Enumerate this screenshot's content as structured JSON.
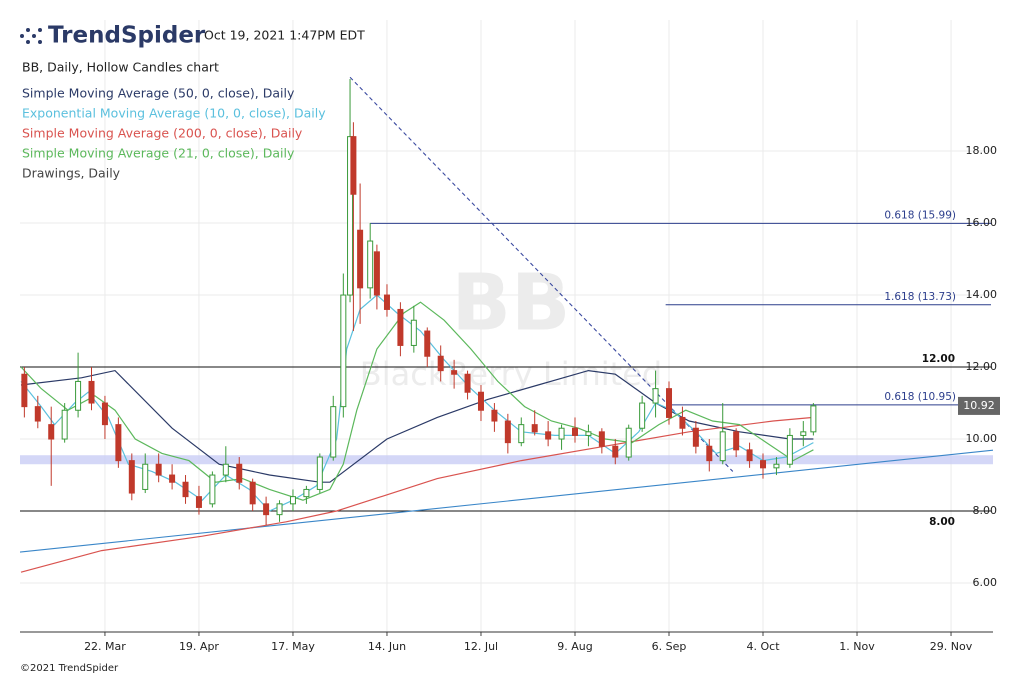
{
  "header": {
    "brand": "TrendSpider",
    "timestamp": "Oct 19, 2021 1:47PM EDT",
    "chart_title": "BB, Daily, Hollow Candles chart",
    "drawings_label": "Drawings, Daily",
    "copyright": "©2021 TrendSpider"
  },
  "chart_data": {
    "type": "candlestick",
    "watermark_symbol": "BB",
    "watermark_name": "BlackBerry Limited",
    "x": [
      57,
      61,
      65,
      69,
      73,
      77,
      81,
      85,
      89,
      93,
      97,
      101,
      105,
      109,
      113,
      117,
      121,
      125,
      129,
      133,
      137,
      141,
      145,
      149,
      152,
      154,
      155,
      157,
      160,
      162,
      165,
      169,
      173,
      177,
      181,
      185,
      189,
      193,
      197,
      201,
      205,
      209,
      213,
      217,
      221,
      225,
      229,
      233,
      237,
      241,
      245,
      249,
      253,
      257,
      261,
      265,
      269,
      273,
      277,
      281,
      285,
      289,
      292
    ],
    "open": [
      11.8,
      10.9,
      10.4,
      10.0,
      10.8,
      11.6,
      11.0,
      10.4,
      9.4,
      8.6,
      9.3,
      9.0,
      8.8,
      8.4,
      8.2,
      9.0,
      9.3,
      8.8,
      8.2,
      7.9,
      8.2,
      8.4,
      8.6,
      9.5,
      10.9,
      14.0,
      18.4,
      15.8,
      14.2,
      15.2,
      14.0,
      13.6,
      12.6,
      13.0,
      12.3,
      11.9,
      11.8,
      11.3,
      10.8,
      10.5,
      9.9,
      10.4,
      10.2,
      10.0,
      10.3,
      10.1,
      10.2,
      9.8,
      9.5,
      10.3,
      11.0,
      11.4,
      10.6,
      10.3,
      9.8,
      9.4,
      10.2,
      9.7,
      9.4,
      9.2,
      9.3,
      10.1,
      10.2
    ],
    "high": [
      12.0,
      11.2,
      10.9,
      11.0,
      12.4,
      12.0,
      11.2,
      10.6,
      9.6,
      9.6,
      9.6,
      9.3,
      9.0,
      8.7,
      9.1,
      9.8,
      9.5,
      8.9,
      8.4,
      8.3,
      8.6,
      8.7,
      9.6,
      11.2,
      14.6,
      20.0,
      18.8,
      17.1,
      16.0,
      15.4,
      14.3,
      13.8,
      13.7,
      13.1,
      12.6,
      12.2,
      11.9,
      11.5,
      11.0,
      10.7,
      10.6,
      10.8,
      10.5,
      10.4,
      10.6,
      10.4,
      10.3,
      10.0,
      10.4,
      11.2,
      11.9,
      11.6,
      10.9,
      10.5,
      10.0,
      11.0,
      10.3,
      9.9,
      9.6,
      9.5,
      10.3,
      10.5,
      11.0
    ],
    "low": [
      10.6,
      10.3,
      8.7,
      9.9,
      10.6,
      10.8,
      10.0,
      9.2,
      8.3,
      8.5,
      8.8,
      8.6,
      8.2,
      7.9,
      8.1,
      8.8,
      8.6,
      8.0,
      7.6,
      7.7,
      8.0,
      8.2,
      8.5,
      9.4,
      10.6,
      13.8,
      13.0,
      13.2,
      13.9,
      13.6,
      13.4,
      12.3,
      12.4,
      12.0,
      11.6,
      11.4,
      11.1,
      10.5,
      10.2,
      9.6,
      9.8,
      10.1,
      9.8,
      9.7,
      9.9,
      9.8,
      9.6,
      9.3,
      9.4,
      10.2,
      10.6,
      10.4,
      10.1,
      9.6,
      9.1,
      9.3,
      9.5,
      9.2,
      8.9,
      9.0,
      9.2,
      9.8,
      10.1
    ],
    "close": [
      10.9,
      10.5,
      10.0,
      10.8,
      11.6,
      11.0,
      10.4,
      9.4,
      8.5,
      9.3,
      9.0,
      8.8,
      8.4,
      8.1,
      9.0,
      9.3,
      8.8,
      8.2,
      7.9,
      8.2,
      8.4,
      8.6,
      9.5,
      10.9,
      14.0,
      18.4,
      16.8,
      14.2,
      15.5,
      14.0,
      13.6,
      12.6,
      13.3,
      12.3,
      11.9,
      11.8,
      11.3,
      10.8,
      10.5,
      9.9,
      10.4,
      10.2,
      10.0,
      10.3,
      10.1,
      10.2,
      9.8,
      9.5,
      10.3,
      11.0,
      11.4,
      10.6,
      10.3,
      9.8,
      9.4,
      10.2,
      9.7,
      9.4,
      9.2,
      9.3,
      10.1,
      10.2,
      10.92
    ],
    "up_color": "#3a9a3a",
    "down_color": "#c0392b",
    "indicators": [
      {
        "name": "Simple Moving Average (50, 0, close), Daily",
        "color": "#2b3a67",
        "x": [
          56,
          74,
          84,
          101,
          115,
          130,
          145,
          148,
          165,
          180,
          195,
          210,
          225,
          233,
          245,
          255,
          270,
          285,
          292
        ],
        "values": [
          11.5,
          11.7,
          11.9,
          10.3,
          9.3,
          9.0,
          8.8,
          8.8,
          10.0,
          10.6,
          11.1,
          11.5,
          11.9,
          11.8,
          11.0,
          10.5,
          10.2,
          10.0,
          10.0
        ]
      },
      {
        "name": "Exponential Moving Average (10, 0, close), Daily",
        "color": "#5bc0de",
        "x": [
          56,
          62,
          66,
          72,
          76,
          82,
          88,
          95,
          102,
          110,
          117,
          124,
          130,
          137,
          144,
          150,
          153,
          157,
          162,
          168,
          175,
          182,
          190,
          197,
          205,
          215,
          225,
          233,
          240,
          245,
          250,
          257,
          263,
          270,
          277,
          284,
          292
        ],
        "values": [
          11.6,
          10.9,
          10.4,
          11.0,
          11.3,
          10.6,
          9.3,
          9.1,
          8.8,
          8.3,
          9.0,
          8.6,
          8.0,
          8.3,
          8.7,
          10.0,
          12.5,
          13.6,
          14.0,
          13.5,
          13.0,
          12.2,
          11.4,
          10.8,
          10.2,
          10.1,
          10.1,
          9.6,
          10.2,
          11.0,
          10.8,
          10.2,
          9.6,
          9.8,
          9.4,
          9.5,
          9.9
        ]
      },
      {
        "name": "Simple Moving Average (200, 0, close), Daily",
        "color": "#d9534f",
        "x": [
          56,
          80,
          110,
          135,
          150,
          180,
          205,
          230,
          255,
          280,
          292
        ],
        "values": [
          6.3,
          6.9,
          7.3,
          7.7,
          8.0,
          8.9,
          9.4,
          9.8,
          10.2,
          10.5,
          10.6
        ]
      },
      {
        "name": "Simple Moving Average (21, 0, close), Daily",
        "color": "#5cb85c",
        "x": [
          56,
          62,
          70,
          78,
          84,
          90,
          98,
          106,
          114,
          122,
          130,
          140,
          148,
          152,
          156,
          162,
          170,
          175,
          182,
          190,
          198,
          206,
          214,
          222,
          230,
          238,
          246,
          254,
          262,
          270,
          278,
          286,
          292
        ],
        "values": [
          12.0,
          11.4,
          10.8,
          11.2,
          10.8,
          10.0,
          9.6,
          9.4,
          8.8,
          8.9,
          8.6,
          8.3,
          8.6,
          9.3,
          10.8,
          12.5,
          13.5,
          13.8,
          13.3,
          12.5,
          11.6,
          10.9,
          10.5,
          10.3,
          10.0,
          9.9,
          10.4,
          10.8,
          10.5,
          10.4,
          9.9,
          9.4,
          9.7
        ]
      }
    ],
    "levels": [
      {
        "value": 15.99,
        "label": "0.618 (15.99)",
        "color": "#2c3e8c",
        "x0": 160
      },
      {
        "value": 13.73,
        "label": "1.618 (13.73)",
        "color": "#2c3e8c",
        "x0": 248
      },
      {
        "value": 12.0,
        "label": "12.00",
        "color": "#111111",
        "x0": 55.7
      },
      {
        "value": 10.95,
        "label": "0.618 (10.95)",
        "color": "#2c3e8c",
        "x0": 249
      },
      {
        "value": 8.0,
        "label": "8.00",
        "color": "#111111",
        "x0": 55.7
      }
    ],
    "trendlines": [
      {
        "x": [
          154,
          268
        ],
        "y": [
          20.05,
          9.1
        ],
        "color": "#3b4aa0",
        "dashed": true
      },
      {
        "x": [
          55.7,
          345.5
        ],
        "y": [
          6.86,
          9.69
        ],
        "color": "#3a86c8",
        "dashed": false
      }
    ],
    "zone": [
      9.3,
      9.55
    ],
    "zone_color": "#c9cdf5",
    "last_price": 10.92,
    "xlim": [
      55.7,
      345.5
    ],
    "ylim": [
      4.64,
      21.64
    ],
    "xticks": [
      {
        "value": 81,
        "label": "22. Mar"
      },
      {
        "value": 109,
        "label": "19. Apr"
      },
      {
        "value": 137,
        "label": "17. May"
      },
      {
        "value": 165,
        "label": "14. Jun"
      },
      {
        "value": 193,
        "label": "12. Jul"
      },
      {
        "value": 221,
        "label": "9. Aug"
      },
      {
        "value": 249,
        "label": "6. Sep"
      },
      {
        "value": 277,
        "label": "4. Oct"
      },
      {
        "value": 305,
        "label": "1. Nov"
      },
      {
        "value": 333,
        "label": "29. Nov"
      }
    ],
    "yticks": [
      {
        "value": 6,
        "label": "6.00"
      },
      {
        "value": 8,
        "label": "8.00"
      },
      {
        "value": 10,
        "label": "10.00"
      },
      {
        "value": 12,
        "label": "12.00"
      },
      {
        "value": 14,
        "label": "14.00"
      },
      {
        "value": 16,
        "label": "16.00"
      },
      {
        "value": 18,
        "label": "18.00"
      }
    ],
    "grid": true
  }
}
